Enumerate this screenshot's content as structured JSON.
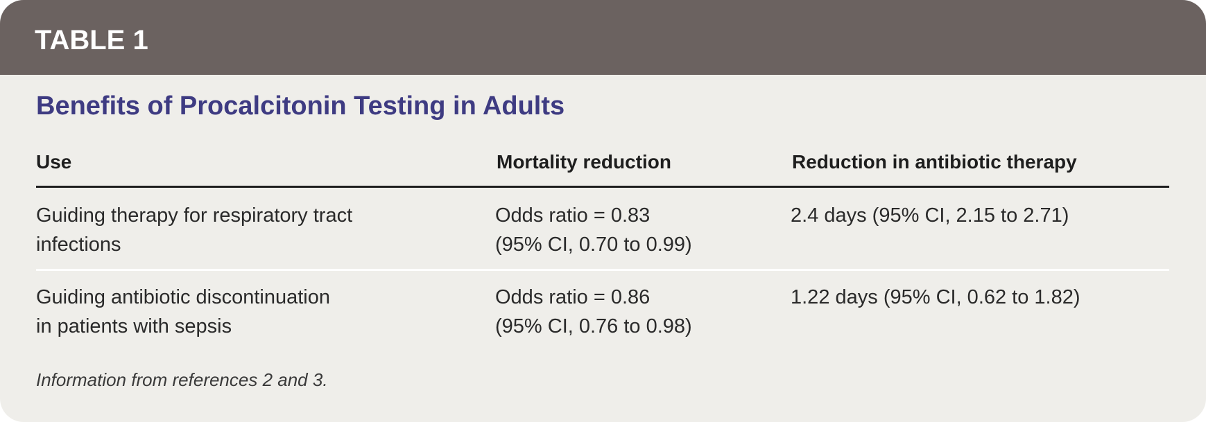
{
  "header": {
    "label": "TABLE 1",
    "title": "Benefits of Procalcitonin Testing in Adults"
  },
  "table": {
    "columns": [
      "Use",
      "Mortality reduction",
      "Reduction in antibiotic therapy"
    ],
    "rows": [
      [
        [
          "Guiding therapy for respiratory tract",
          "infections"
        ],
        [
          "Odds ratio = 0.83",
          "(95% CI, 0.70 to 0.99)"
        ],
        [
          "2.4 days (95% CI, 2.15 to 2.71)"
        ]
      ],
      [
        [
          "Guiding antibiotic discontinuation",
          "in patients with sepsis"
        ],
        [
          "Odds ratio = 0.86",
          "(95% CI, 0.76 to 0.98)"
        ],
        [
          "1.22 days (95% CI, 0.62 to 1.82)"
        ]
      ]
    ]
  },
  "footnote": "Information from references 2 and 3."
}
